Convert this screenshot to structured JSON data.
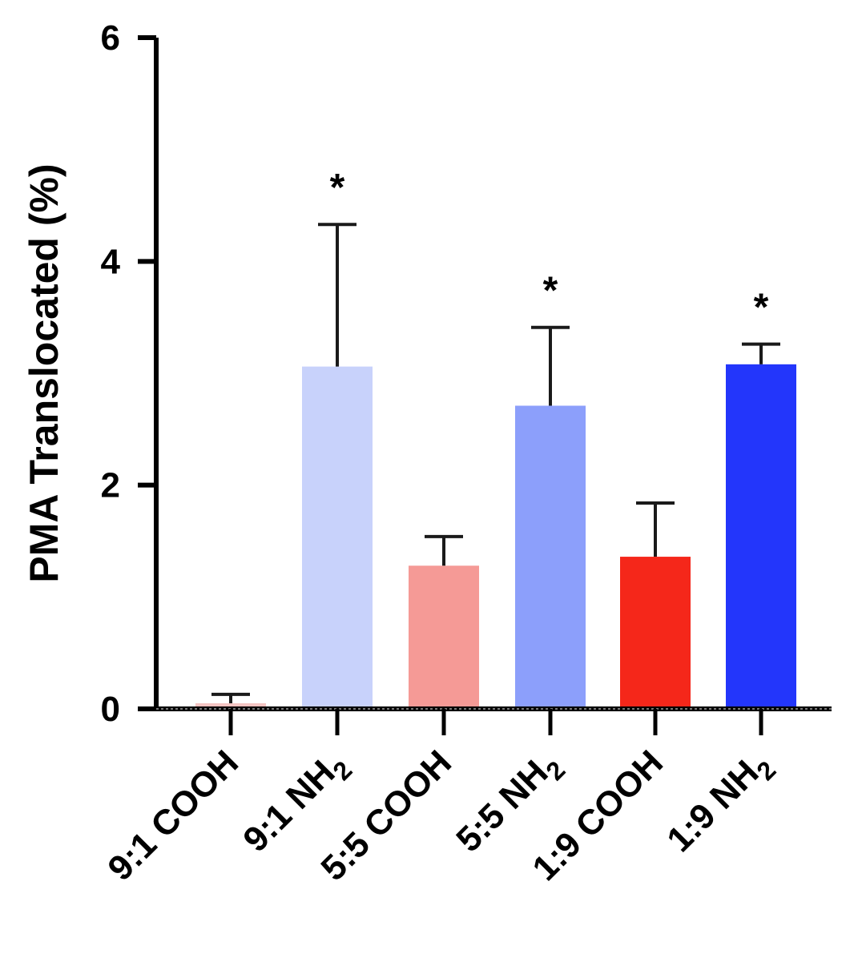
{
  "chart_data": {
    "type": "bar",
    "title": "",
    "xlabel": "",
    "ylabel": "PMA Translocated (%)",
    "ylim": [
      0,
      6
    ],
    "yticks": [
      "0",
      "2",
      "4",
      "6"
    ],
    "categories": [
      {
        "prefix": "9:1 ",
        "base": "COOH",
        "sub": ""
      },
      {
        "prefix": "9:1 ",
        "base": "NH",
        "sub": "2"
      },
      {
        "prefix": "5:5 ",
        "base": "COOH",
        "sub": ""
      },
      {
        "prefix": "5:5 ",
        "base": "NH",
        "sub": "2"
      },
      {
        "prefix": "1:9 ",
        "base": "COOH",
        "sub": ""
      },
      {
        "prefix": "1:9 ",
        "base": "NH",
        "sub": "2"
      }
    ],
    "values": [
      0.05,
      3.06,
      1.28,
      2.71,
      1.36,
      3.08
    ],
    "errors": [
      0.08,
      1.27,
      0.26,
      0.7,
      0.48,
      0.18
    ],
    "colors": [
      "#f4c4c2",
      "#c8d2fb",
      "#f59a96",
      "#8c9ffb",
      "#f5271a",
      "#2336fb"
    ],
    "significance": [
      "",
      "*",
      "",
      "*",
      "",
      "*"
    ]
  }
}
